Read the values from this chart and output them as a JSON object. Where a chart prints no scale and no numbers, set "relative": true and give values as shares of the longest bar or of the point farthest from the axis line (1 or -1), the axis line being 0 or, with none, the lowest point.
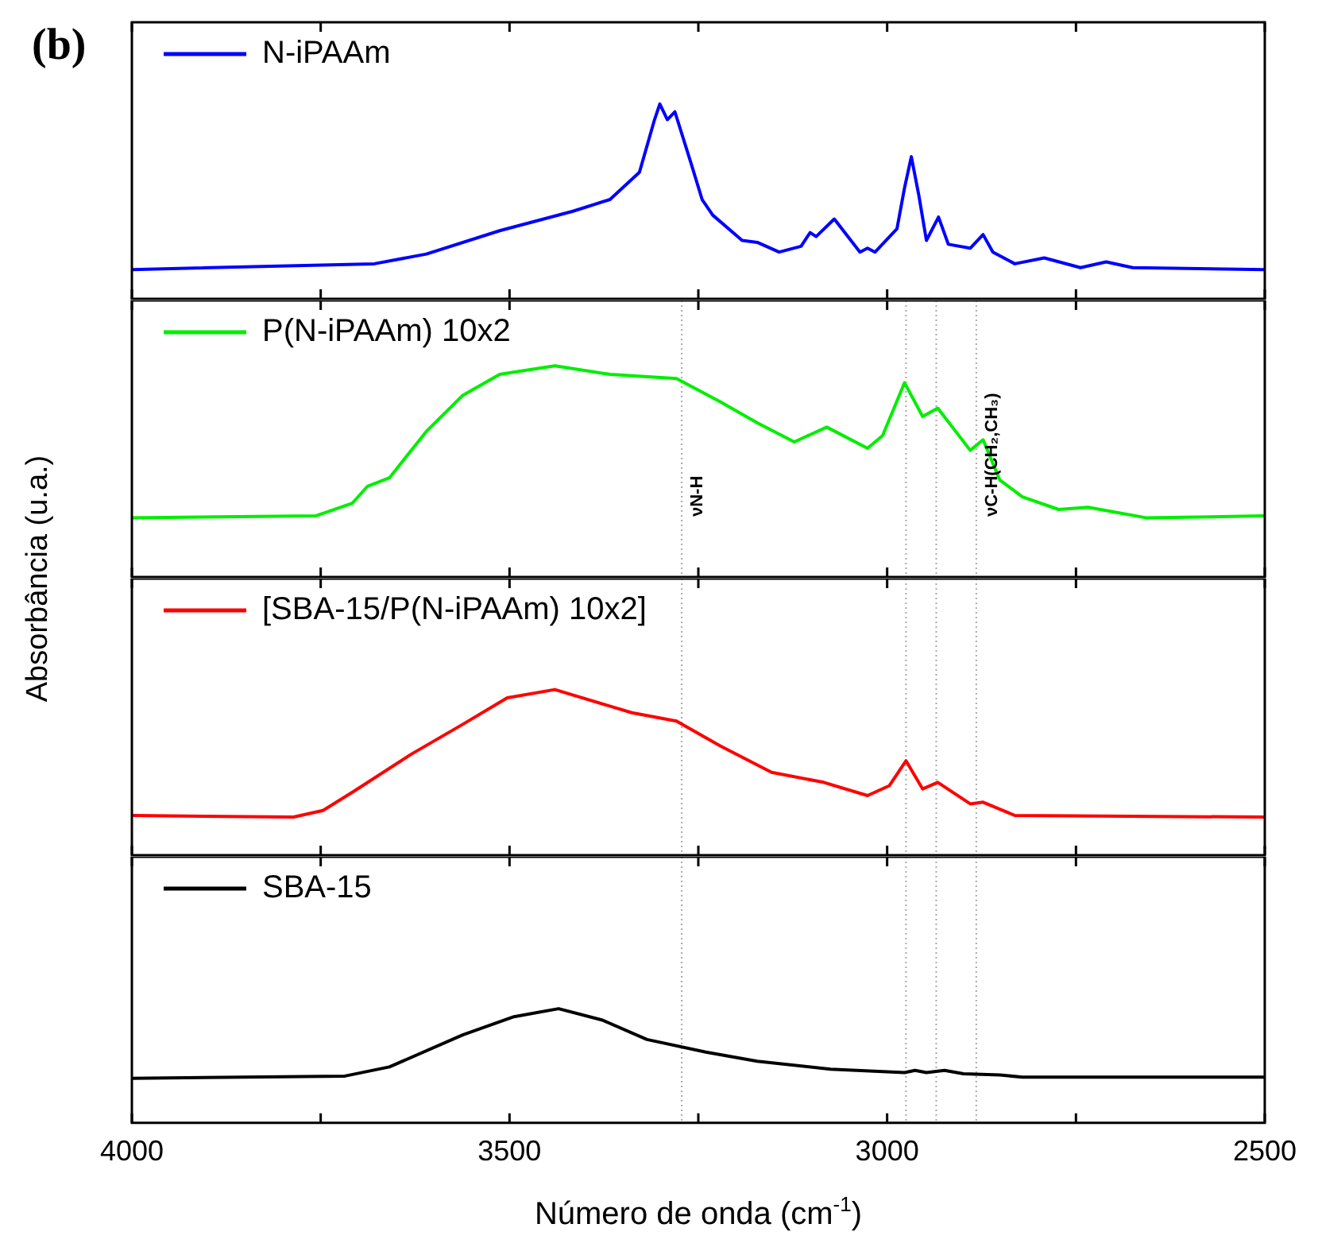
{
  "chart_data": [
    {
      "type": "line",
      "relative": true,
      "ylabel": "Absorbância (u.a.)",
      "annotations": [
        "(b)"
      ],
      "legend": "top left",
      "tick_labels": false,
      "xlim": [
        4000,
        2500
      ],
      "xticks": [
        4000,
        {
          "value": 3750,
          "label": null
        },
        3500,
        {
          "value": 3250,
          "label": null
        },
        3000,
        {
          "value": 2750,
          "label": null
        },
        2500
      ],
      "x": [
        4000,
        3679,
        3610,
        3513,
        3416,
        3367,
        3328,
        3308,
        3301,
        3291,
        3281,
        3260,
        3245,
        3231,
        3192,
        3172,
        3143,
        3114,
        3102,
        3094,
        3070,
        3036,
        3026,
        3016,
        2987,
        2977,
        2968,
        2958,
        2948,
        2932,
        2919,
        2890,
        2873,
        2860,
        2831,
        2792,
        2744,
        2710,
        2675,
        2500
      ],
      "series": [
        {
          "name": "N-iPAAm",
          "color": "#0000ff",
          "values": [
            0.15,
            0.18,
            0.23,
            0.35,
            0.45,
            0.51,
            0.65,
            0.92,
            1.0,
            0.92,
            0.96,
            0.7,
            0.51,
            0.43,
            0.3,
            0.29,
            0.24,
            0.27,
            0.34,
            0.32,
            0.41,
            0.24,
            0.26,
            0.24,
            0.36,
            0.57,
            0.73,
            0.53,
            0.3,
            0.42,
            0.28,
            0.26,
            0.33,
            0.24,
            0.18,
            0.21,
            0.16,
            0.19,
            0.16,
            0.15
          ]
        }
      ]
    },
    {
      "type": "line",
      "relative": true,
      "legend": "top left",
      "tick_labels": false,
      "xlim": [
        4000,
        2500
      ],
      "xticks": [
        4000,
        {
          "value": 3750,
          "label": null
        },
        3500,
        {
          "value": 3250,
          "label": null
        },
        3000,
        {
          "value": 2750,
          "label": null
        },
        2500
      ],
      "ref_lines": [
        {
          "axis": "x",
          "value": 3272,
          "label": "νN-H",
          "color": "#aaaaaa",
          "line_style": "dotted"
        },
        {
          "axis": "x",
          "value": 2975,
          "color": "#aaaaaa",
          "line_style": "dotted"
        },
        {
          "axis": "x",
          "value": 2935,
          "color": "#aaaaaa",
          "line_style": "dotted"
        },
        {
          "axis": "x",
          "value": 2882,
          "label": "νC-H(CH₂,CH₃)",
          "color": "#aaaaaa",
          "line_style": "dotted"
        }
      ],
      "x": [
        4000,
        3756,
        3708,
        3688,
        3659,
        3610,
        3562,
        3513,
        3440,
        3367,
        3279,
        3221,
        3172,
        3123,
        3080,
        3026,
        3006,
        2977,
        2953,
        2933,
        2890,
        2873,
        2851,
        2821,
        2773,
        2734,
        2656,
        2500
      ],
      "series": [
        {
          "name": "P(N-iPAAm) 10x2",
          "color": "#00ee00",
          "values": [
            0.28,
            0.29,
            0.35,
            0.43,
            0.47,
            0.69,
            0.86,
            0.96,
            1.0,
            0.96,
            0.94,
            0.83,
            0.73,
            0.64,
            0.71,
            0.61,
            0.67,
            0.92,
            0.76,
            0.8,
            0.6,
            0.65,
            0.46,
            0.38,
            0.32,
            0.33,
            0.28,
            0.29
          ]
        }
      ]
    },
    {
      "type": "line",
      "relative": true,
      "legend": "top left",
      "tick_labels": false,
      "xlim": [
        4000,
        2500
      ],
      "xticks": [
        4000,
        {
          "value": 3750,
          "label": null
        },
        3500,
        {
          "value": 3250,
          "label": null
        },
        3000,
        {
          "value": 2750,
          "label": null
        },
        2500
      ],
      "ref_lines": [
        {
          "axis": "x",
          "value": 3272,
          "color": "#aaaaaa",
          "line_style": "dotted"
        },
        {
          "axis": "x",
          "value": 2975,
          "color": "#aaaaaa",
          "line_style": "dotted"
        },
        {
          "axis": "x",
          "value": 2935,
          "color": "#aaaaaa",
          "line_style": "dotted"
        },
        {
          "axis": "x",
          "value": 2882,
          "color": "#aaaaaa",
          "line_style": "dotted"
        }
      ],
      "x": [
        4000,
        3786,
        3747,
        3708,
        3630,
        3562,
        3503,
        3440,
        3338,
        3279,
        3221,
        3153,
        3084,
        3026,
        2997,
        2975,
        2953,
        2933,
        2890,
        2873,
        2831,
        2500
      ],
      "series": [
        {
          "name": "[SBA-15/P(N-iPAAm) 10x2]",
          "color": "#ff0000",
          "values": [
            0.24,
            0.23,
            0.27,
            0.38,
            0.61,
            0.79,
            0.95,
            1.0,
            0.86,
            0.81,
            0.66,
            0.5,
            0.44,
            0.36,
            0.42,
            0.57,
            0.4,
            0.44,
            0.31,
            0.32,
            0.24,
            0.23
          ]
        }
      ]
    },
    {
      "type": "line",
      "relative": true,
      "xlabel": "Número de onda (cm$^{-1}$)",
      "legend": "top left",
      "tick_labels": "x",
      "xlim": [
        4000,
        2500
      ],
      "xticks": [
        4000,
        {
          "value": 3750,
          "label": null
        },
        3500,
        {
          "value": 3250,
          "label": null
        },
        3000,
        {
          "value": 2750,
          "label": null
        },
        2500
      ],
      "ref_lines": [
        {
          "axis": "x",
          "value": 3272,
          "color": "#aaaaaa",
          "line_style": "dotted"
        },
        {
          "axis": "x",
          "value": 2975,
          "color": "#aaaaaa",
          "line_style": "dotted"
        },
        {
          "axis": "x",
          "value": 2935,
          "color": "#aaaaaa",
          "line_style": "dotted"
        },
        {
          "axis": "x",
          "value": 2882,
          "color": "#aaaaaa",
          "line_style": "dotted"
        }
      ],
      "x": [
        4000,
        3718,
        3659,
        3562,
        3494,
        3435,
        3377,
        3318,
        3240,
        3172,
        3075,
        2977,
        2963,
        2948,
        2924,
        2899,
        2851,
        2821,
        2500
      ],
      "series": [
        {
          "name": "SBA-15",
          "color": "#000000",
          "values": [
            0.39,
            0.41,
            0.49,
            0.77,
            0.93,
            1.0,
            0.9,
            0.73,
            0.62,
            0.54,
            0.47,
            0.44,
            0.46,
            0.44,
            0.46,
            0.43,
            0.42,
            0.4,
            0.4
          ]
        }
      ]
    }
  ]
}
